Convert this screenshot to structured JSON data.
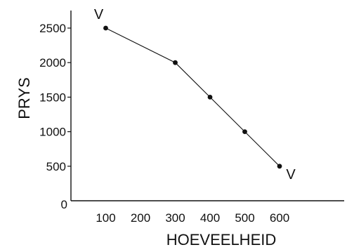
{
  "chart_data": {
    "type": "line",
    "xlabel": "HOEVEELHEID",
    "ylabel": "PRYS",
    "x_ticks": [
      100,
      200,
      300,
      400,
      500,
      600
    ],
    "y_ticks": [
      500,
      1000,
      1500,
      2000,
      2500
    ],
    "origin_label": "0",
    "xlim": [
      0,
      800
    ],
    "ylim": [
      0,
      2800
    ],
    "grid": false,
    "series": [
      {
        "x": [
          100,
          300,
          400,
          500,
          600
        ],
        "y": [
          2500,
          2000,
          1500,
          1000,
          500
        ],
        "color": "#111111"
      }
    ],
    "annotations": [
      {
        "text": "V",
        "x": 100,
        "y": 2500
      },
      {
        "text": "V",
        "x": 600,
        "y": 500
      }
    ]
  }
}
